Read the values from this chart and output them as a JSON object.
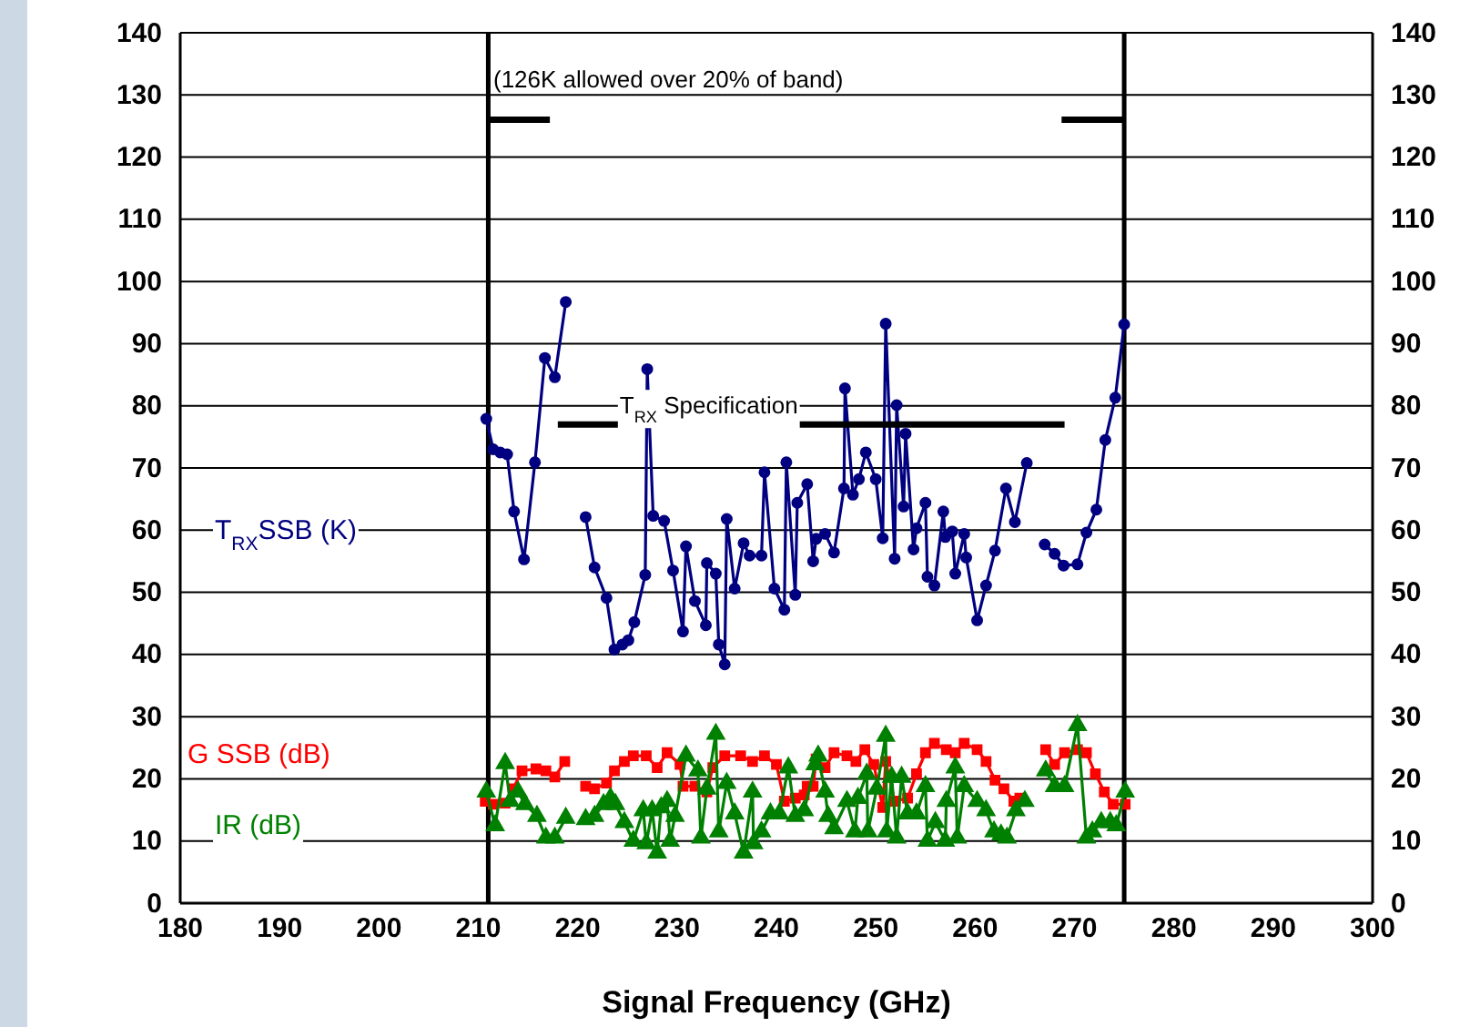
{
  "chart_data": {
    "type": "line",
    "xlabel": "Signal  Frequency  (GHz)",
    "xlim": [
      180,
      300
    ],
    "xticks": [
      180,
      190,
      200,
      210,
      220,
      230,
      240,
      250,
      260,
      270,
      280,
      290,
      300
    ],
    "ylim": [
      0,
      140
    ],
    "yticks": [
      0,
      10,
      20,
      30,
      40,
      50,
      60,
      70,
      80,
      90,
      100,
      110,
      120,
      130,
      140
    ],
    "y2lim": [
      0,
      140
    ],
    "y2ticks": [
      0,
      10,
      20,
      30,
      40,
      50,
      60,
      70,
      80,
      90,
      100,
      110,
      120,
      130,
      140
    ],
    "grid": "y",
    "legend": "left",
    "ref_lines": [
      {
        "axis": "x",
        "value": 211,
        "color": "#000000"
      },
      {
        "axis": "x",
        "value": 275,
        "color": "#000000"
      }
    ],
    "annotations": [
      "(126K allowed over 20% of band)"
    ],
    "series": [
      {
        "name": "T$_{RX}$SSB (K)",
        "color": "#000080",
        "marker": "circle",
        "x": [
          210.8,
          211.5,
          212.2,
          212.9,
          213.6,
          214.6,
          215.7,
          216.7,
          217.7,
          218.8,
          219.8,
          220.8,
          221.7,
          222.9,
          223.7,
          224.5,
          225.1,
          225.7,
          226.8,
          227.0,
          227.6,
          228.7,
          229.6,
          230.6,
          230.9,
          231.8,
          232.9,
          233.0,
          233.9,
          234.2,
          234.8,
          235.0,
          235.8,
          236.7,
          237.3,
          238.5,
          238.8,
          239.8,
          240.8,
          241.0,
          241.9,
          242.1,
          243.1,
          243.7,
          244.0,
          244.9,
          245.8,
          246.8,
          246.9,
          247.7,
          248.3,
          249.0,
          250.0,
          250.7,
          251.0,
          251.9,
          252.1,
          252.8,
          253.0,
          253.8,
          254.1,
          255.0,
          255.2,
          255.9,
          256.8,
          257.0,
          257.7,
          258.0,
          258.9,
          259.1,
          260.2,
          261.1,
          262.0,
          263.1,
          264.0,
          265.2,
          266.1,
          267.0,
          268.0,
          268.9,
          270.3,
          271.2,
          272.2,
          273.1,
          274.1,
          275.0
        ],
        "values": [
          77.9,
          73.0,
          72.5,
          72.2,
          63.0,
          55.3,
          70.9,
          87.7,
          84.6,
          96.7,
          null,
          62.1,
          54.0,
          49.1,
          40.8,
          41.6,
          42.3,
          45.2,
          52.8,
          85.9,
          62.3,
          61.5,
          53.5,
          43.7,
          57.4,
          48.6,
          44.7,
          54.7,
          53.0,
          41.6,
          38.4,
          61.8,
          50.6,
          57.9,
          55.9,
          55.9,
          69.3,
          50.6,
          47.2,
          70.9,
          49.6,
          64.4,
          67.4,
          55.0,
          58.6,
          59.4,
          56.4,
          66.7,
          82.8,
          65.7,
          68.2,
          72.5,
          68.2,
          58.7,
          93.2,
          55.4,
          80.1,
          63.8,
          75.5,
          56.9,
          60.3,
          64.4,
          52.5,
          51.1,
          63.0,
          58.9,
          59.8,
          53.0,
          59.4,
          55.6,
          45.5,
          51.1,
          56.7,
          66.7,
          61.3,
          70.8,
          null,
          57.7,
          56.2,
          54.3,
          54.5,
          59.6,
          63.3,
          74.5,
          81.3,
          93.1
        ]
      },
      {
        "name": "G SSB (dB)",
        "color": "#ff0000",
        "marker": "square",
        "x": [
          210.7,
          211.5,
          212.7,
          213.5,
          214.4,
          215.8,
          216.8,
          217.7,
          218.7,
          219.8,
          220.8,
          221.7,
          222.9,
          223.7,
          224.7,
          225.6,
          226.9,
          228.0,
          229.0,
          230.3,
          230.6,
          231.8,
          233.0,
          233.6,
          234.8,
          236.4,
          237.6,
          238.8,
          240.0,
          240.8,
          241.9,
          242.8,
          243.1,
          243.7,
          244.0,
          244.9,
          245.8,
          247.1,
          248.0,
          248.9,
          249.8,
          250.7,
          251.0,
          251.9,
          253.2,
          254.1,
          255.0,
          255.9,
          257.1,
          258.0,
          258.9,
          260.2,
          261.1,
          262.0,
          262.9,
          263.9,
          264.5,
          265.8,
          267.1,
          268.0,
          269.0,
          270.3,
          271.2,
          272.1,
          273.0,
          273.9,
          275.1
        ],
        "values": [
          16.4,
          15.9,
          16.1,
          18.4,
          21.3,
          21.6,
          21.3,
          20.3,
          22.8,
          null,
          18.8,
          18.4,
          19.3,
          21.3,
          22.8,
          23.7,
          23.7,
          21.8,
          24.2,
          22.3,
          18.8,
          18.8,
          17.9,
          21.8,
          23.7,
          23.7,
          22.8,
          23.7,
          22.3,
          16.4,
          16.9,
          17.4,
          18.8,
          18.8,
          23.2,
          21.8,
          24.2,
          23.7,
          22.8,
          24.7,
          22.3,
          15.4,
          22.8,
          16.4,
          16.9,
          20.8,
          24.2,
          25.7,
          24.7,
          24.2,
          25.7,
          24.7,
          22.8,
          19.8,
          18.4,
          16.4,
          16.9,
          null,
          24.7,
          22.3,
          24.2,
          24.7,
          24.2,
          20.8,
          17.9,
          15.9,
          15.9
        ]
      },
      {
        "name": "IR (dB)",
        "color": "#008000",
        "marker": "triangle",
        "x": [
          210.8,
          211.7,
          212.7,
          213.2,
          214.0,
          214.7,
          215.9,
          216.8,
          217.7,
          218.8,
          219.8,
          220.8,
          221.7,
          222.6,
          223.3,
          223.8,
          224.7,
          225.6,
          226.6,
          226.9,
          227.5,
          228.0,
          228.4,
          229.0,
          229.3,
          229.8,
          230.9,
          232.1,
          232.4,
          233.0,
          233.9,
          234.2,
          235.0,
          235.8,
          236.7,
          237.6,
          237.7,
          238.5,
          239.4,
          240.3,
          241.2,
          241.9,
          242.8,
          243.9,
          244.2,
          244.9,
          245.2,
          245.8,
          247.1,
          247.9,
          248.2,
          249.1,
          249.2,
          250.1,
          251.0,
          251.1,
          251.6,
          252.1,
          252.6,
          253.2,
          254.1,
          255.0,
          255.2,
          256.0,
          257.0,
          257.1,
          258.0,
          258.2,
          258.9,
          260.2,
          261.1,
          261.9,
          262.6,
          263.2,
          264.1,
          265.0,
          266.0,
          267.1,
          268.0,
          269.0,
          270.3,
          271.2,
          271.8,
          272.7,
          273.6,
          274.2,
          275.1
        ],
        "values": [
          17.9,
          12.5,
          22.5,
          16.4,
          17.9,
          15.9,
          14.0,
          10.5,
          10.5,
          13.7,
          null,
          13.5,
          14.0,
          15.9,
          16.9,
          15.9,
          13.0,
          10.0,
          14.9,
          9.6,
          14.9,
          8.1,
          15.4,
          16.4,
          10.0,
          14.0,
          23.7,
          21.3,
          10.5,
          18.4,
          27.2,
          11.5,
          19.3,
          14.4,
          8.1,
          17.9,
          9.6,
          11.5,
          14.4,
          14.4,
          21.8,
          14.0,
          14.9,
          22.3,
          23.7,
          17.9,
          14.0,
          12.0,
          16.4,
          11.5,
          16.9,
          20.8,
          11.5,
          18.4,
          26.9,
          11.5,
          20.3,
          10.5,
          20.3,
          14.4,
          14.4,
          18.8,
          10.0,
          13.0,
          10.0,
          16.4,
          21.8,
          10.5,
          18.8,
          16.4,
          14.9,
          11.5,
          11.0,
          10.5,
          14.9,
          16.4,
          null,
          21.3,
          18.8,
          18.8,
          28.6,
          10.5,
          11.5,
          13.0,
          13.0,
          12.5,
          17.9
        ]
      },
      {
        "name": "T$_{RX}$ Specification",
        "color": "#000000",
        "marker": "none",
        "x": [
          218,
          269
        ],
        "values": [
          77,
          77
        ]
      },
      {
        "color": "#000000",
        "marker": "none",
        "x": [
          211,
          217.2,
          243,
          268.7,
          275
        ],
        "values": [
          126,
          126,
          null,
          126,
          126
        ]
      }
    ]
  }
}
